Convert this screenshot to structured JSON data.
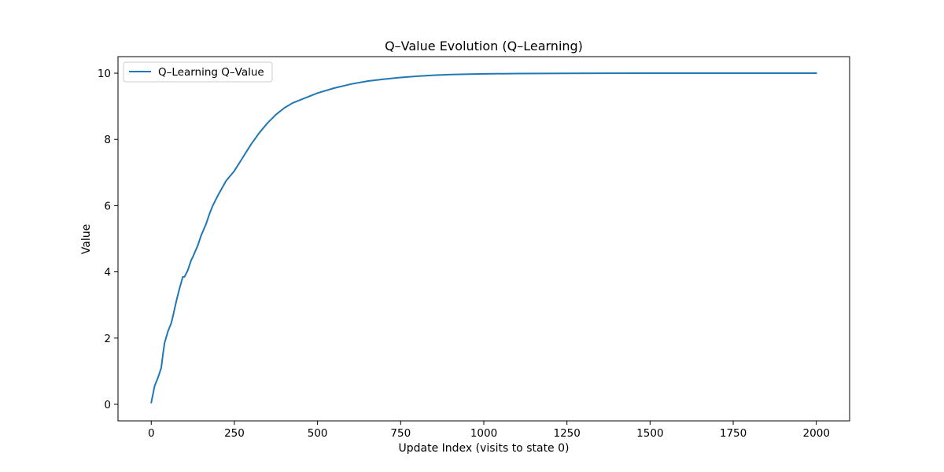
{
  "chart_data": {
    "type": "line",
    "title": "Q–Value Evolution (Q–Learning)",
    "xlabel": "Update Index (visits to state 0)",
    "ylabel": "Value",
    "xlim": [
      -100,
      2100
    ],
    "ylim": [
      -0.5,
      10.5
    ],
    "xticks": [
      0,
      250,
      500,
      750,
      1000,
      1250,
      1500,
      1750,
      2000
    ],
    "yticks": [
      0,
      2,
      4,
      6,
      8,
      10
    ],
    "grid": false,
    "legend": "top-left",
    "series": [
      {
        "name": "Q–Learning Q–Value",
        "color": "#1f77b4",
        "x": [
          0,
          10,
          20,
          30,
          35,
          40,
          50,
          60,
          65,
          75,
          85,
          95,
          100,
          110,
          120,
          125,
          140,
          150,
          165,
          175,
          185,
          200,
          225,
          250,
          275,
          300,
          325,
          350,
          375,
          400,
          425,
          450,
          500,
          550,
          600,
          650,
          700,
          750,
          800,
          850,
          900,
          1000,
          1100,
          1250,
          1500,
          1750,
          2000
        ],
        "y": [
          0.05,
          0.55,
          0.8,
          1.1,
          1.5,
          1.85,
          2.2,
          2.45,
          2.65,
          3.1,
          3.5,
          3.85,
          3.85,
          4.05,
          4.35,
          4.45,
          4.8,
          5.1,
          5.45,
          5.75,
          6.0,
          6.3,
          6.75,
          7.05,
          7.45,
          7.85,
          8.2,
          8.5,
          8.75,
          8.95,
          9.1,
          9.2,
          9.4,
          9.55,
          9.67,
          9.76,
          9.82,
          9.87,
          9.91,
          9.94,
          9.96,
          9.98,
          9.99,
          9.995,
          10.0,
          10.0,
          10.0
        ]
      }
    ]
  }
}
